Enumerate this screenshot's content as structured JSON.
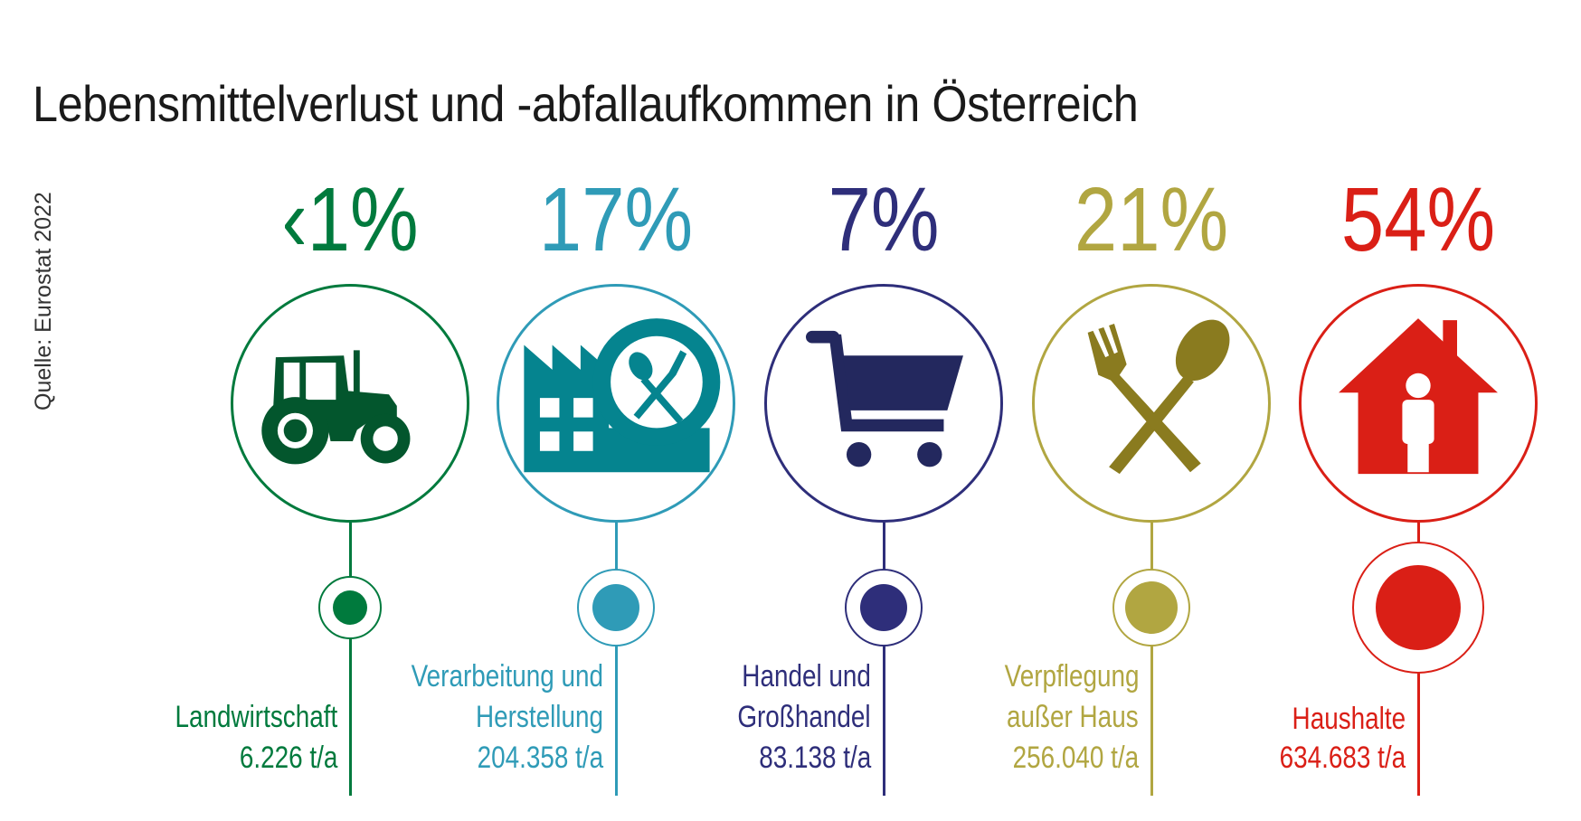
{
  "title": "Lebensmittelverlust und -abfallaufkommen in Österreich",
  "source": "Quelle: Eurostat 2022",
  "sectors": [
    {
      "percent": "‹1%",
      "label_lines": [
        "Landwirtschaft"
      ],
      "amount": "6.226 t/a",
      "color": "#007a3d",
      "icon_color": "#03562d",
      "icon": "tractor-icon"
    },
    {
      "percent": "17%",
      "label_lines": [
        "Verarbeitung und",
        "Herstellung"
      ],
      "amount": "204.358 t/a",
      "color": "#2f9bb7",
      "icon_color": "#05848f",
      "icon": "factory-plate-icon"
    },
    {
      "percent": "7%",
      "label_lines": [
        "Handel und",
        "Großhandel"
      ],
      "amount": "83.138 t/a",
      "color": "#2e2e7a",
      "icon_color": "#23285e",
      "icon": "shopping-cart-icon"
    },
    {
      "percent": "21%",
      "label_lines": [
        "Verpflegung",
        "außer Haus"
      ],
      "amount": "256.040 t/a",
      "color": "#b1a641",
      "icon_color": "#8a7b1f",
      "icon": "fork-spoon-icon"
    },
    {
      "percent": "54%",
      "label_lines": [
        "Haushalte"
      ],
      "amount": "634.683 t/a",
      "color": "#da1f16",
      "icon_color": "#da1f16",
      "icon": "house-person-icon"
    }
  ]
}
